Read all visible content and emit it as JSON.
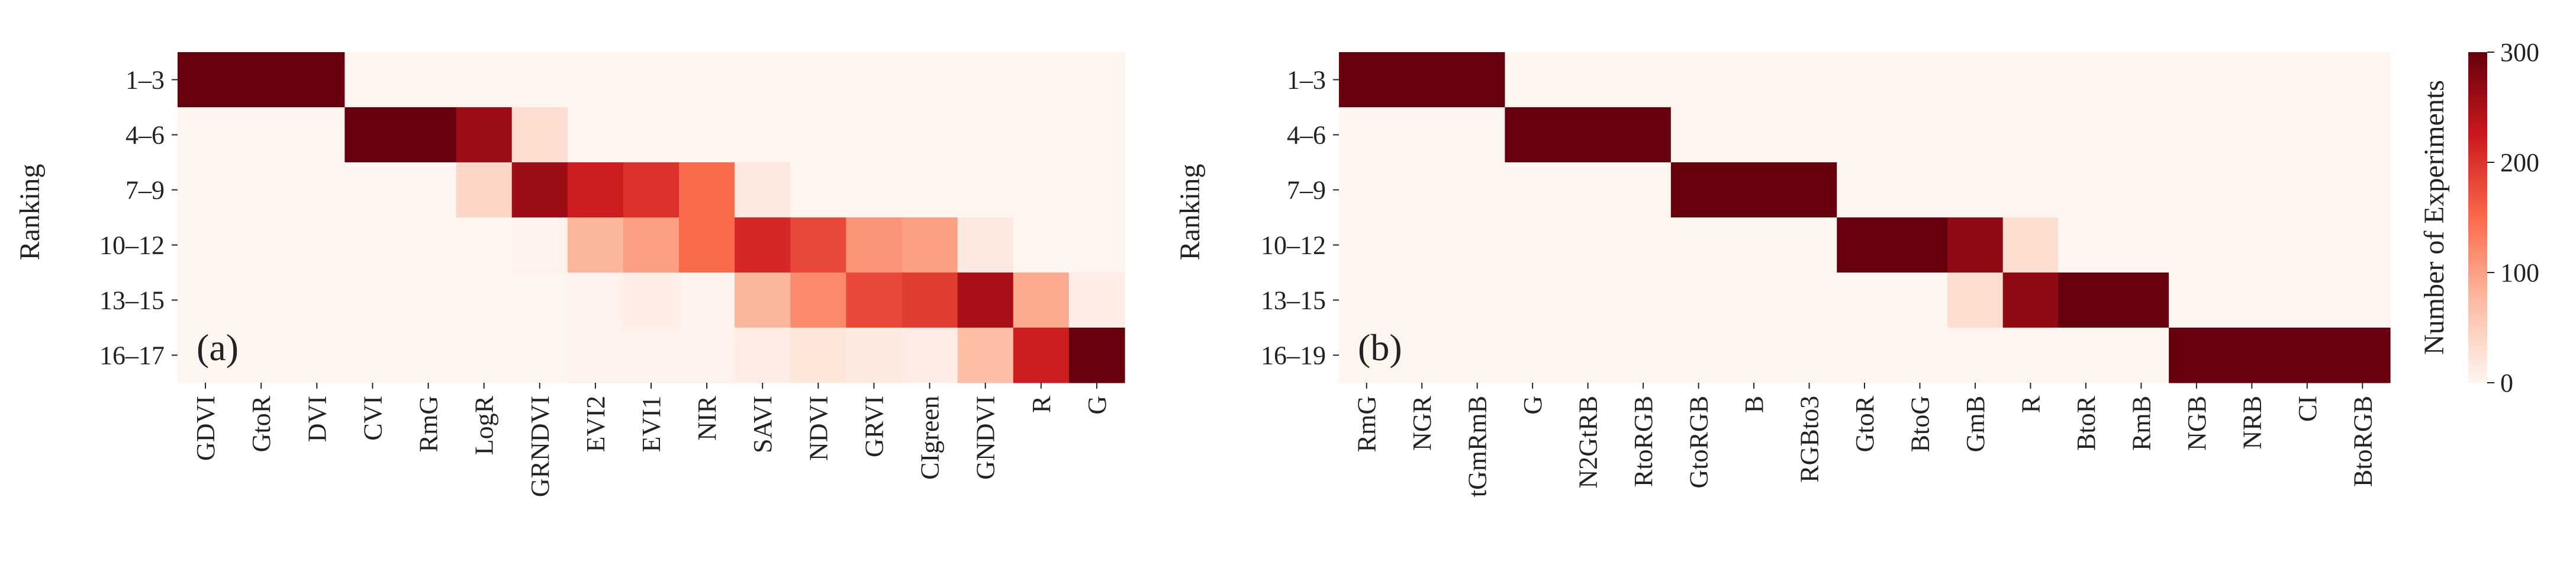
{
  "chart_data": [
    {
      "type": "heatmap",
      "panel_label": "(a)",
      "ylabel": "Ranking",
      "xlabel": "",
      "rows": [
        "1–3",
        "4–6",
        "7–9",
        "10–12",
        "13–15",
        "16–17"
      ],
      "columns": [
        "GDVI",
        "GtoR",
        "DVI",
        "CVI",
        "RmG",
        "LogR",
        "GRNDVI",
        "EVI2",
        "EVI1",
        "NIR",
        "SAVI",
        "NDVI",
        "GRVI",
        "CIgreen",
        "GNDVI",
        "R",
        "G"
      ],
      "values": [
        [
          300,
          300,
          300,
          0,
          0,
          0,
          0,
          0,
          0,
          0,
          0,
          0,
          0,
          0,
          0,
          0,
          0
        ],
        [
          0,
          0,
          0,
          300,
          300,
          260,
          30,
          0,
          0,
          0,
          0,
          0,
          0,
          0,
          0,
          0,
          0
        ],
        [
          0,
          0,
          0,
          0,
          0,
          40,
          260,
          220,
          200,
          150,
          15,
          0,
          0,
          0,
          0,
          0,
          0
        ],
        [
          0,
          0,
          0,
          0,
          0,
          0,
          5,
          80,
          100,
          150,
          210,
          180,
          110,
          100,
          15,
          0,
          0
        ],
        [
          0,
          0,
          0,
          0,
          0,
          0,
          0,
          5,
          10,
          5,
          80,
          120,
          180,
          190,
          250,
          90,
          10
        ],
        [
          0,
          0,
          0,
          0,
          0,
          0,
          0,
          5,
          5,
          5,
          10,
          20,
          15,
          10,
          70,
          220,
          300
        ]
      ],
      "vmin": 0,
      "vmax": 300,
      "colormap": "Reds"
    },
    {
      "type": "heatmap",
      "panel_label": "(b)",
      "ylabel": "Ranking",
      "xlabel": "",
      "rows": [
        "1–3",
        "4–6",
        "7–9",
        "10–12",
        "13–15",
        "16–19"
      ],
      "columns": [
        "RmG",
        "NGR",
        "tGmRmB",
        "G",
        "N2GtRB",
        "RtoRGB",
        "GtoRGB",
        "B",
        "RGBto3",
        "GtoR",
        "BtoG",
        "GmB",
        "R",
        "BtoR",
        "RmB",
        "NGB",
        "NRB",
        "CI",
        "BtoRGB"
      ],
      "values": [
        [
          300,
          300,
          300,
          0,
          0,
          0,
          0,
          0,
          0,
          0,
          0,
          0,
          0,
          0,
          0,
          0,
          0,
          0,
          0
        ],
        [
          0,
          0,
          0,
          300,
          300,
          300,
          0,
          0,
          0,
          0,
          0,
          0,
          0,
          0,
          0,
          0,
          0,
          0,
          0
        ],
        [
          0,
          0,
          0,
          0,
          0,
          0,
          300,
          300,
          300,
          0,
          0,
          0,
          0,
          0,
          0,
          0,
          0,
          0,
          0
        ],
        [
          0,
          0,
          0,
          0,
          0,
          0,
          0,
          0,
          0,
          300,
          300,
          270,
          30,
          0,
          0,
          0,
          0,
          0,
          0
        ],
        [
          0,
          0,
          0,
          0,
          0,
          0,
          0,
          0,
          0,
          0,
          0,
          30,
          270,
          300,
          300,
          0,
          0,
          0,
          0
        ],
        [
          0,
          0,
          0,
          0,
          0,
          0,
          0,
          0,
          0,
          0,
          0,
          0,
          0,
          0,
          0,
          300,
          300,
          300,
          300
        ]
      ],
      "vmin": 0,
      "vmax": 300,
      "colormap": "Reds"
    }
  ],
  "colorbar": {
    "label": "Number of Experiments",
    "ticks": [
      0,
      100,
      200,
      300
    ],
    "vmin": 0,
    "vmax": 300,
    "stops": [
      "#fff5f0",
      "#fcbba1",
      "#fb6a4a",
      "#cb181d",
      "#67000d"
    ]
  }
}
